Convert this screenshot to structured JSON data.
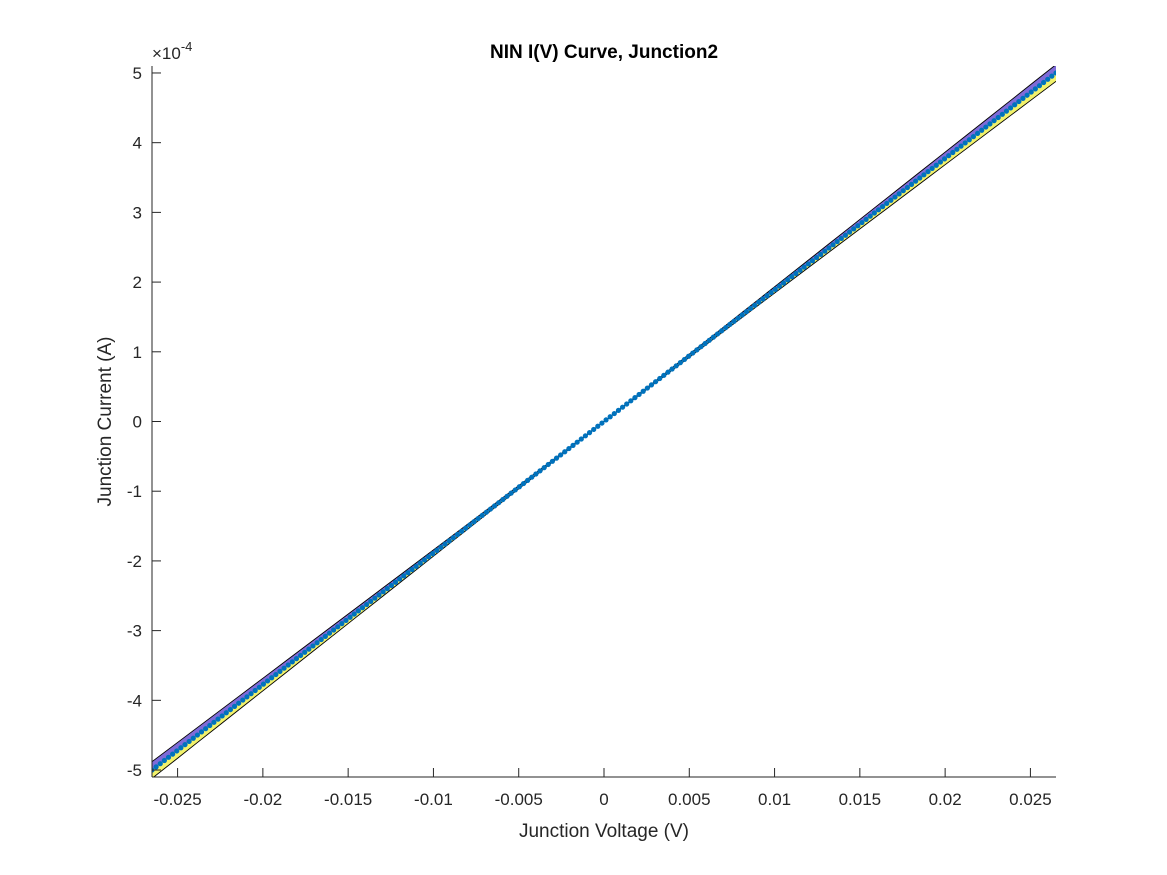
{
  "chart_data": {
    "type": "scatter",
    "title": "NIN I(V) Curve, Junction2",
    "xlabel": "Junction Voltage (V)",
    "ylabel": "Junction Current (A)",
    "y_exponent_base": "×10",
    "y_exponent_power": "-4",
    "xlim": [
      -0.0265,
      0.0265
    ],
    "ylim": [
      -5.1,
      5.1
    ],
    "xticks": [
      -0.025,
      -0.02,
      -0.015,
      -0.01,
      -0.005,
      0,
      0.005,
      0.01,
      0.015,
      0.02,
      0.025
    ],
    "xtick_labels": [
      "-0.025",
      "-0.02",
      "-0.015",
      "-0.01",
      "-0.005",
      "0",
      "0.005",
      "0.01",
      "0.015",
      "0.02",
      "0.025"
    ],
    "yticks": [
      -5,
      -4,
      -3,
      -2,
      -1,
      0,
      1,
      2,
      3,
      4,
      5
    ],
    "ytick_labels": [
      "-5",
      "-4",
      "-3",
      "-2",
      "-1",
      "0",
      "1",
      "2",
      "3",
      "4",
      "5"
    ],
    "grid": false,
    "series": [
      {
        "x_range": [
          -0.0265,
          0.0265
        ],
        "slope": 188.7,
        "intercept": 0,
        "n_points": 220,
        "color": "#0072BD"
      }
    ],
    "band": {
      "upper_fill": "#7E6BD8",
      "lower_fill": "#F2F26A",
      "outline": "#000000",
      "width_at_edge": 0.12
    }
  }
}
